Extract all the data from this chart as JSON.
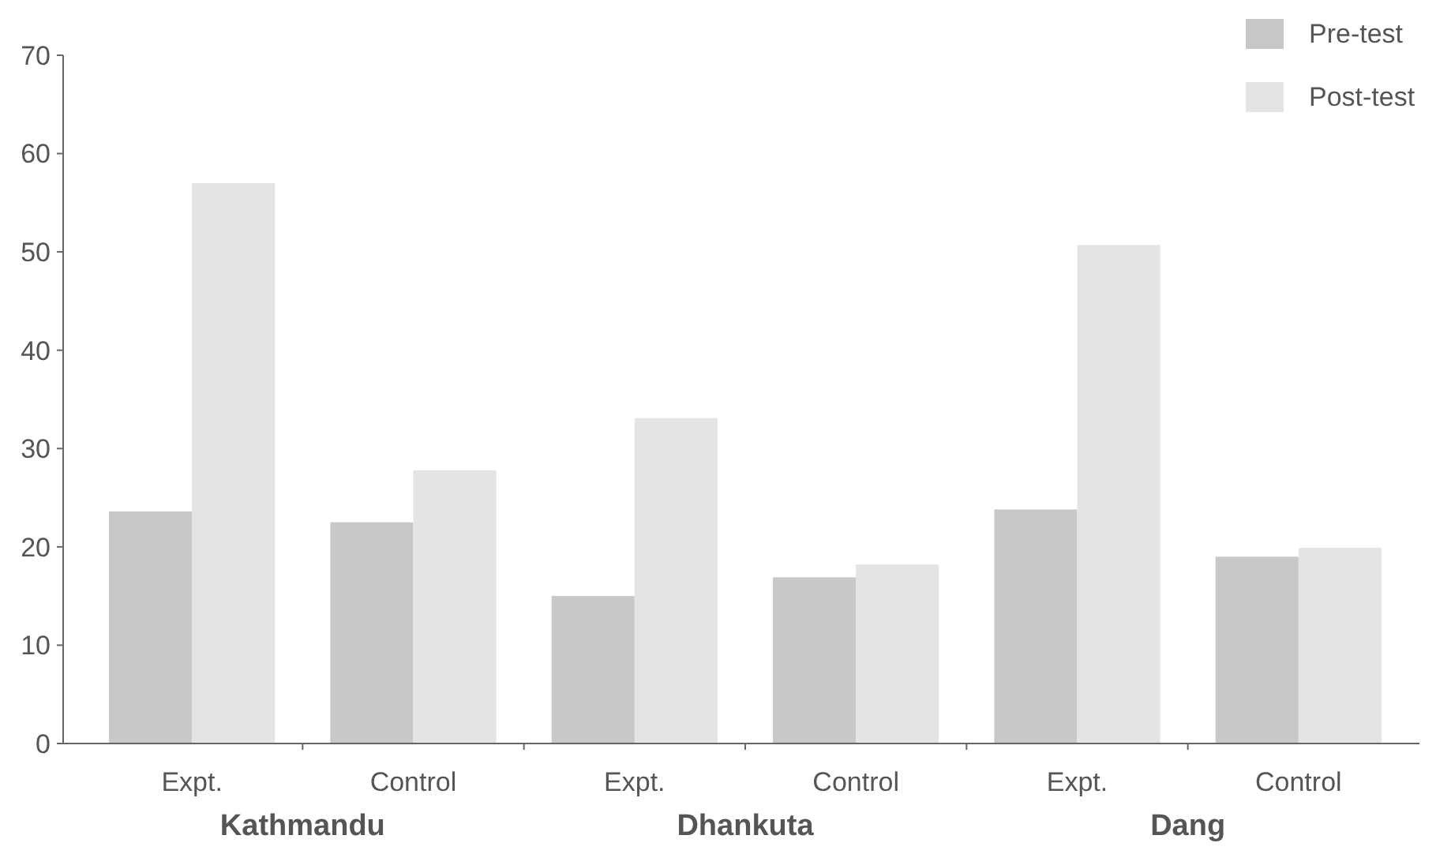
{
  "chart_data": {
    "type": "bar",
    "categories": [
      "Expt.",
      "Control",
      "Expt.",
      "Control",
      "Expt.",
      "Control"
    ],
    "series": [
      {
        "name": "Pre-test",
        "color": "#c8c8c8",
        "values": [
          23.6,
          22.5,
          15,
          16.9,
          23.8,
          19
        ]
      },
      {
        "name": "Post-test",
        "color": "#e4e4e4",
        "values": [
          57,
          27.8,
          33.1,
          18.2,
          50.7,
          19.9
        ]
      }
    ],
    "ylim": [
      0,
      70
    ],
    "yticks": [
      0,
      10,
      20,
      30,
      40,
      50,
      60,
      70
    ],
    "annotations": [
      "Kathmandu",
      "Dhankuta",
      "Dang"
    ],
    "legend": "top right",
    "grid": false
  }
}
